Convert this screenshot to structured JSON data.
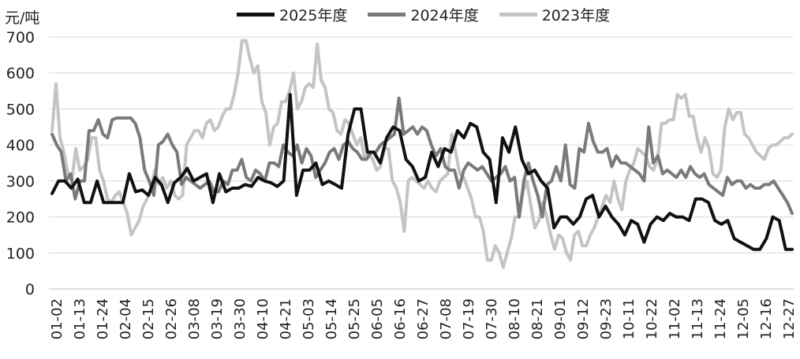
{
  "chart_data": {
    "type": "line",
    "unit_label": "元/吨",
    "ylim": [
      0,
      700
    ],
    "yticks": [
      0,
      100,
      200,
      300,
      400,
      500,
      600,
      700
    ],
    "grid": "horizontal",
    "legend_position": "top",
    "x_tick_labels": [
      "01-02",
      "01-13",
      "01-24",
      "02-04",
      "02-15",
      "02-26",
      "03-08",
      "03-19",
      "03-30",
      "04-10",
      "04-21",
      "05-03",
      "05-14",
      "05-25",
      "06-05",
      "06-16",
      "06-27",
      "07-08",
      "07-19",
      "07-30",
      "08-10",
      "08-21",
      "09-01",
      "09-12",
      "09-23",
      "10-11",
      "10-22",
      "11-02",
      "11-13",
      "11-24",
      "12-05",
      "12-16",
      "12-27"
    ],
    "series": [
      {
        "name": "2025年度",
        "color": "#111111",
        "values": [
          265,
          300,
          300,
          280,
          305,
          240,
          240,
          300,
          240,
          240,
          240,
          240,
          320,
          270,
          275,
          260,
          310,
          290,
          240,
          295,
          310,
          335,
          300,
          310,
          320,
          240,
          320,
          270,
          280,
          280,
          290,
          285,
          310,
          300,
          295,
          285,
          300,
          540,
          260,
          330,
          330,
          350,
          290,
          300,
          290,
          280,
          430,
          500,
          500,
          380,
          380,
          350,
          420,
          450,
          440,
          360,
          340,
          300,
          310,
          380,
          340,
          390,
          380,
          440,
          420,
          460,
          450,
          380,
          360,
          240,
          420,
          380,
          450,
          360,
          320,
          330,
          300,
          280,
          170,
          200,
          200,
          180,
          200,
          250,
          260,
          200,
          230,
          200,
          180,
          150,
          190,
          180,
          130,
          180,
          200,
          190,
          210,
          200,
          200,
          190,
          250,
          250,
          240,
          190,
          180,
          190,
          140,
          130,
          120,
          110,
          110,
          140,
          200,
          190,
          110,
          110
        ]
      },
      {
        "name": "2024年度",
        "color": "#7a7a7a",
        "values": [
          430,
          400,
          380,
          300,
          320,
          250,
          300,
          300,
          440,
          440,
          470,
          430,
          420,
          470,
          475,
          475,
          475,
          475,
          460,
          420,
          330,
          300,
          260,
          400,
          410,
          430,
          400,
          380,
          290,
          310,
          300,
          290,
          280,
          290,
          300,
          270,
          270,
          300,
          290,
          330,
          330,
          360,
          310,
          300,
          330,
          320,
          300,
          350,
          350,
          340,
          400,
          380,
          370,
          400,
          350,
          390,
          370,
          310,
          330,
          350,
          380,
          390,
          360,
          400,
          410,
          390,
          380,
          360,
          360,
          380,
          380,
          400,
          410,
          420,
          430,
          530,
          430,
          440,
          450,
          430,
          450,
          440,
          400,
          370,
          390,
          340,
          330,
          330,
          280,
          330,
          350,
          340,
          330,
          340,
          320,
          300,
          310,
          320,
          340,
          300,
          310,
          200,
          300,
          350,
          300,
          260,
          200,
          290,
          300,
          340,
          300,
          400,
          290,
          280,
          390,
          380,
          460,
          410,
          380,
          380,
          390,
          340,
          370,
          350,
          350,
          340,
          330,
          320,
          300,
          450,
          350,
          370,
          320,
          330,
          320,
          310,
          330,
          310,
          340,
          320,
          310,
          320,
          290,
          280,
          270,
          260,
          310,
          290,
          300,
          300,
          280,
          290,
          280,
          280,
          290,
          290,
          300,
          280,
          260,
          240,
          210
        ]
      },
      {
        "name": "2023年度",
        "color": "#c4c4c4",
        "values": [
          440,
          570,
          420,
          380,
          320,
          300,
          390,
          330,
          340,
          360,
          420,
          420,
          330,
          300,
          250,
          240,
          260,
          270,
          240,
          210,
          150,
          170,
          190,
          230,
          250,
          280,
          330,
          290,
          310,
          280,
          300,
          260,
          250,
          260,
          400,
          420,
          440,
          440,
          420,
          460,
          470,
          440,
          450,
          480,
          500,
          500,
          540,
          600,
          690,
          690,
          640,
          600,
          620,
          520,
          490,
          400,
          450,
          460,
          520,
          520,
          550,
          600,
          500,
          520,
          560,
          570,
          560,
          680,
          580,
          560,
          500,
          490,
          440,
          430,
          470,
          460,
          430,
          400,
          420,
          360,
          380,
          360,
          330,
          340,
          390,
          390,
          300,
          280,
          240,
          160,
          300,
          310,
          300,
          290,
          280,
          300,
          280,
          270,
          300,
          310,
          320,
          430,
          380,
          320,
          310,
          280,
          250,
          200,
          200,
          160,
          80,
          80,
          120,
          100,
          60,
          100,
          140,
          200,
          200,
          270,
          300,
          230,
          170,
          190,
          240,
          200,
          150,
          110,
          150,
          140,
          100,
          80,
          150,
          160,
          120,
          120,
          150,
          170,
          200,
          230,
          260,
          240,
          300,
          250,
          220,
          300,
          330,
          350,
          390,
          380,
          370,
          340,
          330,
          360,
          460,
          460,
          470,
          470,
          540,
          530,
          540,
          480,
          480,
          420,
          380,
          420,
          390,
          320,
          310,
          330,
          450,
          500,
          470,
          490,
          490,
          430,
          420,
          400,
          380,
          370,
          360,
          390,
          400,
          400,
          410,
          420,
          420,
          430
        ]
      }
    ]
  }
}
